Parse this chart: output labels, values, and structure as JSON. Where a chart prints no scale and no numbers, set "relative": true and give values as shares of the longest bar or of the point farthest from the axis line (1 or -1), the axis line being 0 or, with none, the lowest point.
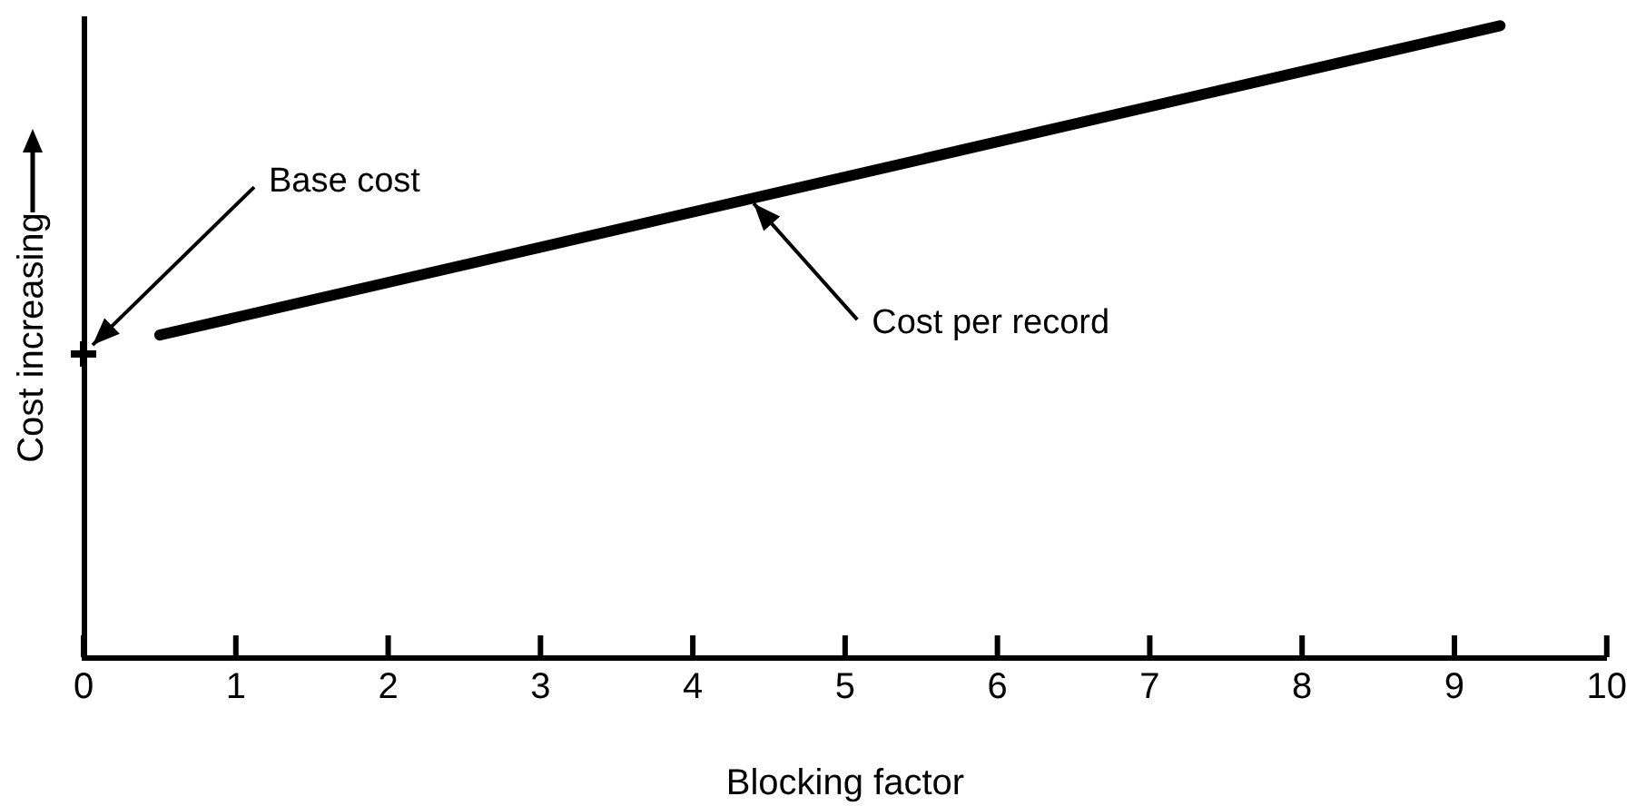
{
  "chart_data": {
    "type": "line",
    "xlabel": "Blocking factor",
    "ylabel": "Cost increasing",
    "relative": true,
    "tick_labels": "x",
    "xlim": [
      0,
      10
    ],
    "xticks": [
      0,
      1,
      2,
      3,
      4,
      5,
      6,
      7,
      8,
      9,
      10
    ],
    "series": [
      {
        "color": "#000000",
        "x": [
          0.5,
          9.3
        ],
        "values": [
          0.51,
          1.0
        ],
        "marker": "none"
      },
      {
        "type": "scatter",
        "color": "#000000",
        "x": [
          0
        ],
        "values": [
          0.48
        ],
        "marker": "cross"
      }
    ],
    "annotations": [
      {
        "text": "Base cost",
        "x": 0,
        "y": 0.48
      },
      {
        "text": "Cost per record",
        "x": 4.4,
        "y": 0.73
      }
    ]
  }
}
